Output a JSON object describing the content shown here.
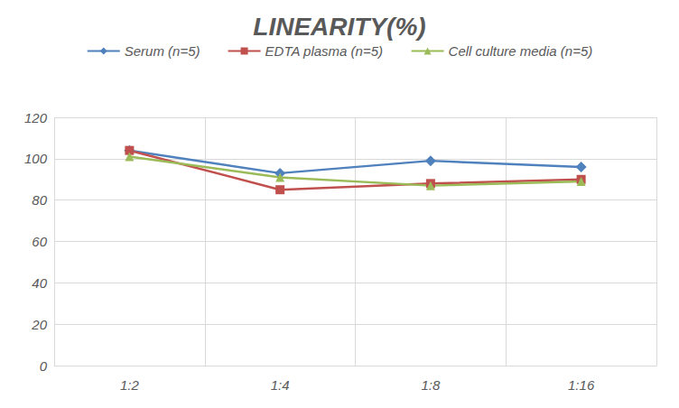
{
  "chart_data": {
    "type": "line",
    "title": "LINEARITY(%)",
    "categories": [
      "1:2",
      "1:4",
      "1:8",
      "1:16"
    ],
    "series": [
      {
        "name": "Serum (n=5)",
        "color": "#4f81bd",
        "marker": "diamond",
        "values": [
          104,
          93,
          99,
          96
        ]
      },
      {
        "name": "EDTA plasma (n=5)",
        "color": "#c0504d",
        "marker": "square",
        "values": [
          104,
          85,
          88,
          90
        ]
      },
      {
        "name": "Cell culture media (n=5)",
        "color": "#9bbb59",
        "marker": "triangle",
        "values": [
          101,
          91,
          87,
          89
        ]
      }
    ],
    "ylim": [
      0,
      120
    ],
    "yticks": [
      0,
      20,
      40,
      60,
      80,
      100,
      120
    ],
    "grid": true,
    "legend": "top"
  }
}
